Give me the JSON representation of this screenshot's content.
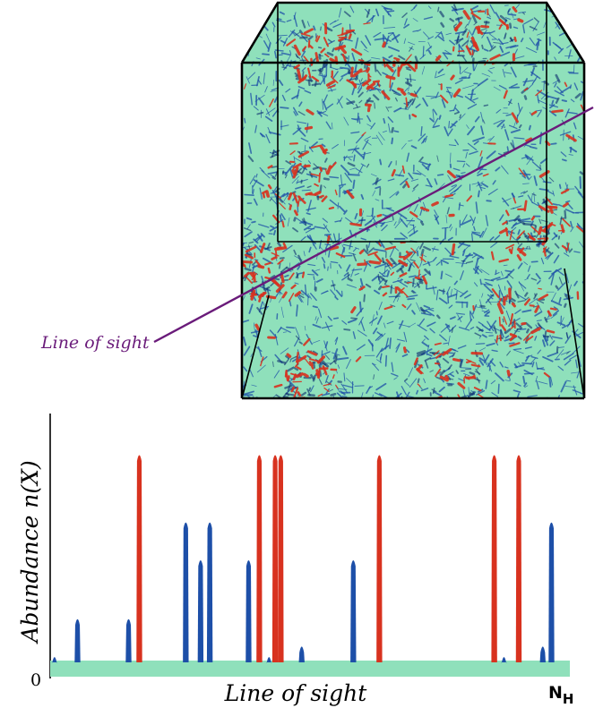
{
  "cube": {
    "line_of_sight_label": "Line of sight",
    "colors": {
      "background": "#8fe0bb",
      "blue_structures": "#1d4fa8",
      "red_structures": "#d8321f",
      "sightline": "#6a1b7a",
      "edges": "#000000"
    }
  },
  "chart_data": {
    "type": "bar",
    "x_axis_label": "Line of sight",
    "y_axis_label": "Abundance n(X)",
    "y_origin_label": "0",
    "x_end_label": "N",
    "x_end_subscript": "H",
    "baseline_color": "#8fe0bb",
    "xlim": [
      0,
      1
    ],
    "ylim": [
      0,
      1
    ],
    "series": [
      {
        "color": "#d8321f",
        "peaks": [
          {
            "x": 0.171,
            "y": 1.0
          },
          {
            "x": 0.406,
            "y": 1.0
          },
          {
            "x": 0.437,
            "y": 1.0
          },
          {
            "x": 0.448,
            "y": 1.0
          },
          {
            "x": 0.641,
            "y": 1.0
          },
          {
            "x": 0.866,
            "y": 1.0
          },
          {
            "x": 0.914,
            "y": 1.0
          }
        ]
      },
      {
        "color": "#1d4fa8",
        "peaks": [
          {
            "x": 0.005,
            "y": 0.04
          },
          {
            "x": 0.05,
            "y": 0.22
          },
          {
            "x": 0.15,
            "y": 0.22
          },
          {
            "x": 0.262,
            "y": 0.68
          },
          {
            "x": 0.291,
            "y": 0.5
          },
          {
            "x": 0.309,
            "y": 0.68
          },
          {
            "x": 0.385,
            "y": 0.5
          },
          {
            "x": 0.425,
            "y": 0.04
          },
          {
            "x": 0.489,
            "y": 0.09
          },
          {
            "x": 0.59,
            "y": 0.5
          },
          {
            "x": 0.885,
            "y": 0.04
          },
          {
            "x": 0.961,
            "y": 0.09
          },
          {
            "x": 0.978,
            "y": 0.68
          }
        ]
      }
    ]
  }
}
